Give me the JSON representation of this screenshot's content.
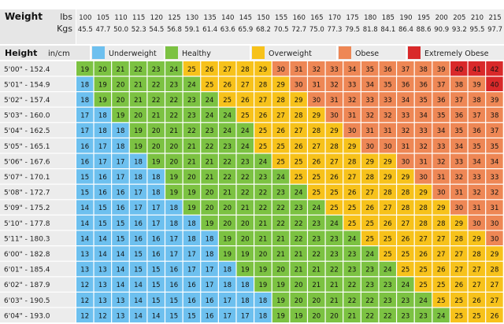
{
  "header": {
    "weight_label": "Weight",
    "lbs_unit": "lbs",
    "kgs_unit": "Kgs",
    "height_label": "Height",
    "height_unit": "in/cm"
  },
  "legend": [
    {
      "label": "Underweight",
      "color": "#6dc0ef"
    },
    {
      "label": "Healthy",
      "color": "#7cc242"
    },
    {
      "label": "Overweight",
      "color": "#f7c21b"
    },
    {
      "label": "Obese",
      "color": "#ee8755"
    },
    {
      "label": "Extremely Obese",
      "color": "#d9292a"
    }
  ],
  "chart_data": {
    "type": "heatmap",
    "title": "",
    "x_lbs": [
      "100",
      "105",
      "110",
      "115",
      "120",
      "125",
      "130",
      "135",
      "140",
      "145",
      "150",
      "155",
      "160",
      "165",
      "170",
      "175",
      "180",
      "185",
      "190",
      "195",
      "200",
      "205",
      "210",
      "215"
    ],
    "x_kgs": [
      "45.5",
      "47.7",
      "50.0",
      "52.3",
      "54.5",
      "56.8",
      "59.1",
      "61.4",
      "63.6",
      "65.9",
      "68.2",
      "70.5",
      "72.7",
      "75.0",
      "77.3",
      "79.5",
      "81.8",
      "84.1",
      "86.4",
      "88.6",
      "90.9",
      "93.2",
      "95.5",
      "97.7"
    ],
    "y_labels": [
      "5'00\" - 152.4",
      "5'01\" - 154.9",
      "5'02\" - 157.4",
      "5'03\" - 160.0",
      "5'04\" - 162.5",
      "5'05\" - 165.1",
      "5'06\" - 167.6",
      "5'07\" - 170.1",
      "5'08\" - 172.7",
      "5'09\" - 175.2",
      "5'10\" - 177.8",
      "5'11\" - 180.3",
      "6'00\" - 182.8",
      "6'01\" - 185.4",
      "6'02\" - 187.9",
      "6'03\" - 190.5",
      "6'04\" - 193.0"
    ],
    "values": [
      [
        19,
        20,
        21,
        22,
        23,
        24,
        25,
        26,
        27,
        28,
        29,
        30,
        31,
        32,
        33,
        34,
        35,
        36,
        37,
        38,
        39,
        40,
        41,
        42
      ],
      [
        18,
        19,
        20,
        21,
        22,
        23,
        24,
        25,
        26,
        27,
        28,
        29,
        30,
        31,
        32,
        33,
        34,
        35,
        36,
        36,
        37,
        38,
        39,
        40
      ],
      [
        18,
        19,
        20,
        21,
        22,
        22,
        23,
        24,
        25,
        26,
        27,
        28,
        29,
        30,
        31,
        32,
        33,
        33,
        34,
        35,
        36,
        37,
        38,
        39
      ],
      [
        17,
        18,
        19,
        20,
        21,
        22,
        23,
        24,
        24,
        25,
        26,
        27,
        28,
        29,
        30,
        31,
        32,
        32,
        33,
        34,
        35,
        36,
        37,
        38
      ],
      [
        17,
        18,
        18,
        19,
        20,
        21,
        22,
        23,
        24,
        24,
        25,
        26,
        27,
        28,
        29,
        30,
        31,
        31,
        32,
        33,
        34,
        35,
        36,
        37
      ],
      [
        16,
        17,
        18,
        19,
        20,
        20,
        21,
        22,
        23,
        24,
        25,
        25,
        26,
        27,
        28,
        29,
        30,
        30,
        31,
        32,
        33,
        34,
        35,
        35
      ],
      [
        16,
        17,
        17,
        18,
        19,
        20,
        21,
        21,
        22,
        23,
        24,
        25,
        25,
        26,
        27,
        28,
        29,
        29,
        30,
        31,
        32,
        33,
        34,
        34
      ],
      [
        15,
        16,
        17,
        18,
        18,
        19,
        20,
        21,
        22,
        22,
        23,
        24,
        25,
        25,
        26,
        27,
        28,
        29,
        29,
        30,
        31,
        32,
        33,
        33
      ],
      [
        15,
        16,
        16,
        17,
        18,
        19,
        19,
        20,
        21,
        22,
        22,
        23,
        24,
        25,
        25,
        26,
        27,
        28,
        28,
        29,
        30,
        31,
        32,
        32
      ],
      [
        14,
        15,
        16,
        17,
        17,
        18,
        19,
        20,
        20,
        21,
        22,
        22,
        23,
        24,
        25,
        25,
        26,
        27,
        28,
        28,
        29,
        30,
        31,
        31
      ],
      [
        14,
        15,
        15,
        16,
        17,
        18,
        18,
        19,
        20,
        20,
        21,
        22,
        22,
        23,
        24,
        25,
        25,
        26,
        27,
        28,
        28,
        29,
        30,
        30
      ],
      [
        14,
        14,
        15,
        16,
        16,
        17,
        18,
        18,
        19,
        20,
        21,
        21,
        22,
        23,
        23,
        24,
        25,
        25,
        26,
        27,
        27,
        28,
        29,
        30
      ],
      [
        13,
        14,
        14,
        15,
        16,
        17,
        17,
        18,
        19,
        19,
        20,
        21,
        21,
        22,
        23,
        23,
        24,
        25,
        25,
        26,
        27,
        27,
        28,
        29
      ],
      [
        13,
        13,
        14,
        15,
        15,
        16,
        17,
        17,
        18,
        19,
        19,
        20,
        21,
        21,
        22,
        23,
        23,
        24,
        25,
        25,
        26,
        27,
        27,
        28
      ],
      [
        12,
        13,
        14,
        14,
        15,
        16,
        16,
        17,
        18,
        18,
        19,
        19,
        20,
        21,
        21,
        22,
        23,
        23,
        24,
        25,
        25,
        26,
        27,
        27
      ],
      [
        12,
        13,
        13,
        14,
        15,
        15,
        16,
        16,
        17,
        18,
        18,
        19,
        20,
        20,
        21,
        22,
        22,
        23,
        23,
        24,
        25,
        25,
        26,
        27
      ],
      [
        12,
        12,
        13,
        14,
        14,
        15,
        15,
        16,
        17,
        17,
        18,
        19,
        19,
        20,
        20,
        21,
        22,
        22,
        23,
        23,
        24,
        25,
        25,
        26
      ]
    ],
    "category_thresholds": {
      "underweight_max": 18.4,
      "healthy_max": 24.9,
      "overweight_max": 29.9,
      "obese_max": 39.9
    }
  }
}
